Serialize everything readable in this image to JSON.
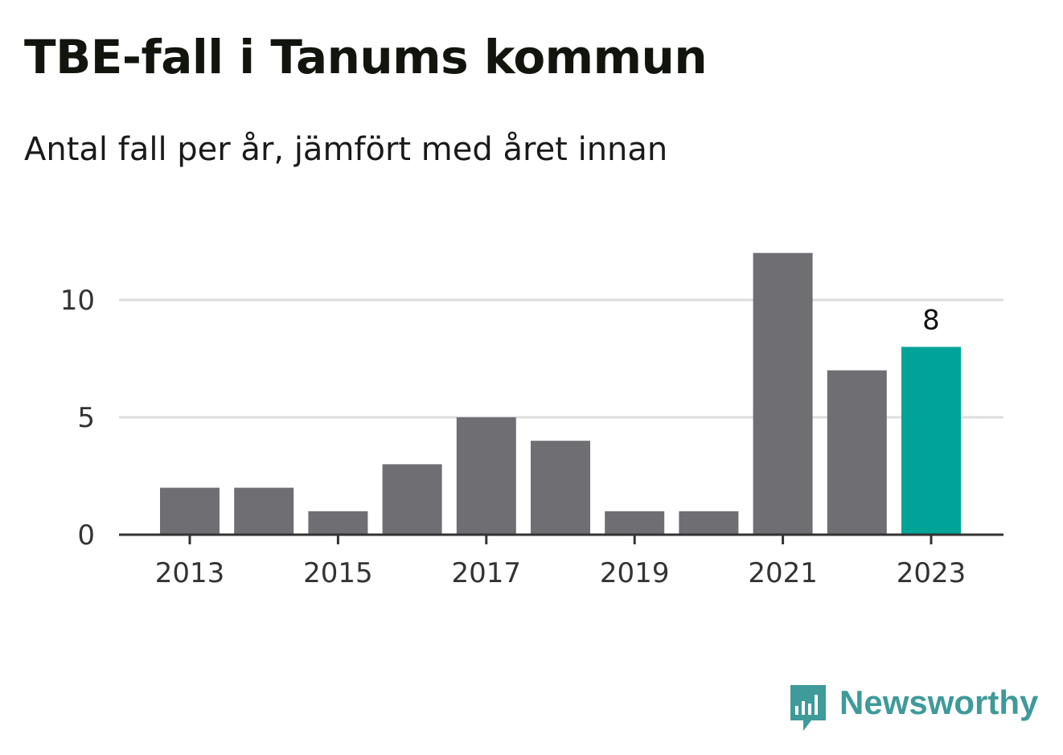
{
  "title": "TBE-fall i Tanums kommun",
  "subtitle": "Antal fall per år, jämfört med året innan",
  "brand": {
    "name": "Newsworthy",
    "color": "#3f9a9a"
  },
  "colors": {
    "bar": "#6f6e73",
    "highlight": "#00a398",
    "grid": "#dddddd",
    "axis": "#333333",
    "tick_text": "#333333"
  },
  "chart_data": {
    "type": "bar",
    "categories": [
      "2013",
      "2014",
      "2015",
      "2016",
      "2017",
      "2018",
      "2019",
      "2020",
      "2021",
      "2022",
      "2023"
    ],
    "values": [
      2,
      2,
      1,
      3,
      5,
      4,
      1,
      1,
      12,
      7,
      8
    ],
    "highlight_index": 10,
    "data_labels": [
      {
        "index": 10,
        "text": "8"
      }
    ],
    "x_tick_labels": [
      "2013",
      "2015",
      "2017",
      "2019",
      "2021",
      "2023"
    ],
    "y_ticks": [
      0,
      5,
      10
    ],
    "y_tick_labels": [
      "0",
      "5",
      "10"
    ],
    "ylim": [
      0,
      12
    ],
    "grid": true,
    "legend": "none",
    "xlabel": "",
    "ylabel": ""
  }
}
